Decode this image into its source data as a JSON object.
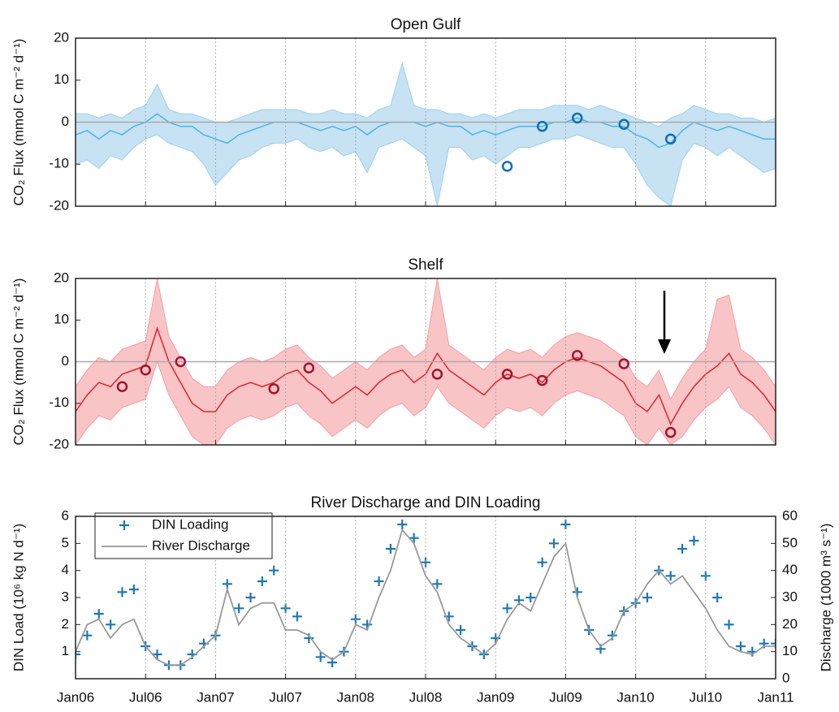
{
  "chart_data": [
    {
      "type": "band",
      "title": "Open Gulf",
      "ylabel": "CO₂ Flux (mmol C m⁻² d⁻¹)",
      "ylim": [
        -20,
        20
      ],
      "yticks": [
        -20,
        -10,
        0,
        10,
        20
      ],
      "zero_line": true,
      "x": [
        "2006-01",
        "2006-02",
        "2006-03",
        "2006-04",
        "2006-05",
        "2006-06",
        "2006-07",
        "2006-08",
        "2006-09",
        "2006-10",
        "2006-11",
        "2006-12",
        "2007-01",
        "2007-02",
        "2007-03",
        "2007-04",
        "2007-05",
        "2007-06",
        "2007-07",
        "2007-08",
        "2007-09",
        "2007-10",
        "2007-11",
        "2007-12",
        "2008-01",
        "2008-02",
        "2008-03",
        "2008-04",
        "2008-05",
        "2008-06",
        "2008-07",
        "2008-08",
        "2008-09",
        "2008-10",
        "2008-11",
        "2008-12",
        "2009-01",
        "2009-02",
        "2009-03",
        "2009-04",
        "2009-05",
        "2009-06",
        "2009-07",
        "2009-08",
        "2009-09",
        "2009-10",
        "2009-11",
        "2009-12",
        "2010-01",
        "2010-02",
        "2010-03",
        "2010-04",
        "2010-05",
        "2010-06",
        "2010-07",
        "2010-08",
        "2010-09",
        "2010-10",
        "2010-11",
        "2010-12",
        "2011-01"
      ],
      "mean": {
        "color": "#4db3e6",
        "values": [
          -3,
          -2,
          -4,
          -2,
          -3,
          -1,
          0,
          2,
          0,
          -1,
          -1,
          -3,
          -4,
          -5,
          -3,
          -2,
          -1,
          0,
          0,
          0,
          -1,
          -2,
          -1,
          -2,
          -1,
          -3,
          -1,
          0,
          0,
          0,
          -1,
          0,
          -1,
          -1,
          -3,
          -2,
          -3,
          -2,
          -1,
          -1,
          -1,
          0,
          0,
          1,
          0,
          0,
          -1,
          -1,
          -3,
          -4,
          -6,
          -5,
          -2,
          0,
          -1,
          -2,
          -1,
          -2,
          -3,
          -4,
          -4
        ]
      },
      "band_color": "#c6e2f3",
      "band_edge": "#9fd0ee",
      "lower": [
        -10,
        -9,
        -11,
        -8,
        -9,
        -6,
        -4,
        -3,
        -5,
        -6,
        -7,
        -10,
        -15,
        -12,
        -9,
        -8,
        -6,
        -5,
        -5,
        -4,
        -6,
        -7,
        -6,
        -8,
        -7,
        -12,
        -6,
        -5,
        -4,
        -6,
        -8,
        -20,
        -6,
        -6,
        -9,
        -8,
        -10,
        -8,
        -6,
        -6,
        -5,
        -4,
        -4,
        -3,
        -4,
        -5,
        -6,
        -6,
        -10,
        -15,
        -18,
        -20,
        -9,
        -5,
        -6,
        -8,
        -6,
        -8,
        -10,
        -12,
        -11
      ],
      "upper": [
        2,
        2,
        1,
        2,
        1,
        3,
        4,
        9,
        3,
        2,
        2,
        1,
        0,
        0,
        1,
        2,
        3,
        3,
        3,
        3,
        2,
        2,
        3,
        2,
        2,
        1,
        3,
        4,
        14,
        4,
        3,
        3,
        2,
        2,
        1,
        2,
        1,
        2,
        3,
        3,
        3,
        4,
        4,
        4,
        3,
        4,
        3,
        2,
        1,
        0,
        -1,
        1,
        2,
        4,
        3,
        2,
        2,
        1,
        1,
        0,
        1
      ],
      "observations": {
        "color": "#0f6fb5",
        "x": [
          "2009-02",
          "2009-05",
          "2009-08",
          "2009-12",
          "2010-04"
        ],
        "values": [
          -10.5,
          -1,
          1,
          -0.5,
          -4
        ]
      }
    },
    {
      "type": "band",
      "title": "Shelf",
      "ylabel": "CO₂ Flux (mmol C m⁻² d⁻¹)",
      "ylim": [
        -20,
        20
      ],
      "yticks": [
        -20,
        -10,
        0,
        10,
        20
      ],
      "zero_line": true,
      "x": [
        "2006-01",
        "2006-02",
        "2006-03",
        "2006-04",
        "2006-05",
        "2006-06",
        "2006-07",
        "2006-08",
        "2006-09",
        "2006-10",
        "2006-11",
        "2006-12",
        "2007-01",
        "2007-02",
        "2007-03",
        "2007-04",
        "2007-05",
        "2007-06",
        "2007-07",
        "2007-08",
        "2007-09",
        "2007-10",
        "2007-11",
        "2007-12",
        "2008-01",
        "2008-02",
        "2008-03",
        "2008-04",
        "2008-05",
        "2008-06",
        "2008-07",
        "2008-08",
        "2008-09",
        "2008-10",
        "2008-11",
        "2008-12",
        "2009-01",
        "2009-02",
        "2009-03",
        "2009-04",
        "2009-05",
        "2009-06",
        "2009-07",
        "2009-08",
        "2009-09",
        "2009-10",
        "2009-11",
        "2009-12",
        "2010-01",
        "2010-02",
        "2010-03",
        "2010-04",
        "2010-05",
        "2010-06",
        "2010-07",
        "2010-08",
        "2010-09",
        "2010-10",
        "2010-11",
        "2010-12",
        "2011-01"
      ],
      "mean": {
        "color": "#e0242a",
        "values": [
          -12,
          -8,
          -5,
          -6,
          -3,
          -2,
          -1,
          8,
          0,
          -5,
          -10,
          -12,
          -12,
          -8,
          -6,
          -5,
          -6,
          -5,
          -3,
          -2,
          -5,
          -7,
          -10,
          -8,
          -6,
          -8,
          -5,
          -3,
          -2,
          -5,
          -3,
          2,
          -2,
          -4,
          -6,
          -8,
          -5,
          -3,
          -4,
          -3,
          -5,
          -2,
          0,
          1,
          0,
          -1,
          -3,
          -5,
          -10,
          -12,
          -8,
          -15,
          -10,
          -6,
          -3,
          -1,
          2,
          -3,
          -5,
          -8,
          -12
        ]
      },
      "band_color": "#f9c4c6",
      "band_edge": "#f59ea2",
      "lower": [
        -20,
        -16,
        -13,
        -14,
        -11,
        -10,
        -9,
        0,
        -8,
        -13,
        -18,
        -20,
        -20,
        -16,
        -14,
        -13,
        -14,
        -13,
        -11,
        -10,
        -13,
        -15,
        -18,
        -16,
        -14,
        -16,
        -13,
        -11,
        -10,
        -13,
        -11,
        -6,
        -10,
        -12,
        -14,
        -16,
        -13,
        -11,
        -12,
        -11,
        -13,
        -10,
        -8,
        -7,
        -8,
        -9,
        -11,
        -13,
        -18,
        -20,
        -16,
        -20,
        -18,
        -14,
        -11,
        -9,
        -6,
        -11,
        -13,
        -16,
        -20
      ],
      "upper": [
        -6,
        -2,
        1,
        0,
        3,
        4,
        5,
        20,
        6,
        1,
        -4,
        -6,
        -6,
        -2,
        0,
        1,
        0,
        1,
        3,
        4,
        1,
        -1,
        -4,
        -2,
        0,
        -2,
        1,
        3,
        4,
        1,
        3,
        20,
        4,
        2,
        0,
        -2,
        1,
        3,
        2,
        3,
        1,
        4,
        6,
        7,
        6,
        5,
        3,
        1,
        -4,
        -6,
        -2,
        -9,
        -4,
        0,
        3,
        15,
        16,
        3,
        1,
        -2,
        -6
      ],
      "observations": {
        "color": "#a2142f",
        "x": [
          "2006-05",
          "2006-07",
          "2006-10",
          "2007-06",
          "2007-09",
          "2008-08",
          "2009-02",
          "2009-05",
          "2009-08",
          "2009-12",
          "2010-04"
        ],
        "values": [
          -6,
          -2,
          0,
          -6.5,
          -1.5,
          -3,
          -3,
          -4.5,
          1.5,
          -0.5,
          -17
        ]
      }
    },
    {
      "type": "line",
      "title": "River Discharge and DIN Loading",
      "ylabel": "DIN Load (10⁶ kg N d⁻¹)",
      "y2label": "Discharge (1000 m³ s⁻¹)",
      "ylim": [
        0,
        6
      ],
      "yticks": [
        1,
        2,
        3,
        4,
        5,
        6
      ],
      "y2lim": [
        0,
        60
      ],
      "y2ticks": [
        0,
        10,
        20,
        30,
        40,
        50,
        60
      ],
      "xlim": [
        "2006-01",
        "2011-01"
      ],
      "xticks": [
        {
          "value": "2006-01",
          "label": "Jan06"
        },
        {
          "value": "2006-07",
          "label": "Jul06"
        },
        {
          "value": "2007-01",
          "label": "Jan07"
        },
        {
          "value": "2007-07",
          "label": "Jul07"
        },
        {
          "value": "2008-01",
          "label": "Jan08"
        },
        {
          "value": "2008-07",
          "label": "Jul08"
        },
        {
          "value": "2009-01",
          "label": "Jan09"
        },
        {
          "value": "2009-07",
          "label": "Jul09"
        },
        {
          "value": "2010-01",
          "label": "Jan10"
        },
        {
          "value": "2010-07",
          "label": "Jul10"
        },
        {
          "value": "2011-01",
          "label": "Jan11"
        }
      ],
      "grid": "x",
      "legend": "upper left",
      "x": [
        "2006-01",
        "2006-02",
        "2006-03",
        "2006-04",
        "2006-05",
        "2006-06",
        "2006-07",
        "2006-08",
        "2006-09",
        "2006-10",
        "2006-11",
        "2006-12",
        "2007-01",
        "2007-02",
        "2007-03",
        "2007-04",
        "2007-05",
        "2007-06",
        "2007-07",
        "2007-08",
        "2007-09",
        "2007-10",
        "2007-11",
        "2007-12",
        "2008-01",
        "2008-02",
        "2008-03",
        "2008-04",
        "2008-05",
        "2008-06",
        "2008-07",
        "2008-08",
        "2008-09",
        "2008-10",
        "2008-11",
        "2008-12",
        "2009-01",
        "2009-02",
        "2009-03",
        "2009-04",
        "2009-05",
        "2009-06",
        "2009-07",
        "2009-08",
        "2009-09",
        "2009-10",
        "2009-11",
        "2009-12",
        "2010-01",
        "2010-02",
        "2010-03",
        "2010-04",
        "2010-05",
        "2010-06",
        "2010-07",
        "2010-08",
        "2010-09",
        "2010-10",
        "2010-11",
        "2010-12",
        "2011-01"
      ],
      "series": [
        {
          "name": "DIN Loading",
          "color": "#1f77b4",
          "marker": "+",
          "values": [
            0.9,
            1.6,
            2.4,
            2.0,
            3.2,
            3.3,
            1.2,
            0.9,
            0.5,
            0.5,
            0.9,
            1.3,
            1.6,
            3.5,
            2.6,
            3.0,
            3.6,
            4.0,
            2.6,
            2.3,
            1.5,
            0.8,
            0.6,
            1.0,
            2.2,
            2.0,
            3.6,
            4.8,
            5.7,
            5.2,
            4.3,
            3.5,
            2.3,
            1.8,
            1.2,
            0.9,
            1.5,
            2.6,
            2.9,
            3.0,
            4.3,
            5.0,
            5.7,
            3.2,
            1.8,
            1.1,
            1.6,
            2.5,
            2.8,
            3.0,
            4.0,
            3.8,
            4.8,
            5.1,
            3.8,
            3.0,
            2.0,
            1.2,
            1.0,
            1.3,
            1.3
          ]
        },
        {
          "name": "River Discharge",
          "color": "#999999",
          "axis": "y2",
          "values": [
            10,
            20,
            22,
            15,
            20,
            22,
            12,
            7,
            5,
            5,
            8,
            12,
            16,
            33,
            20,
            26,
            28,
            28,
            18,
            18,
            16,
            10,
            7,
            10,
            20,
            18,
            30,
            40,
            55,
            50,
            38,
            32,
            20,
            15,
            12,
            9,
            13,
            22,
            28,
            25,
            35,
            45,
            50,
            30,
            18,
            12,
            15,
            25,
            28,
            35,
            40,
            35,
            38,
            32,
            26,
            18,
            12,
            10,
            9,
            12,
            12
          ]
        }
      ]
    }
  ]
}
